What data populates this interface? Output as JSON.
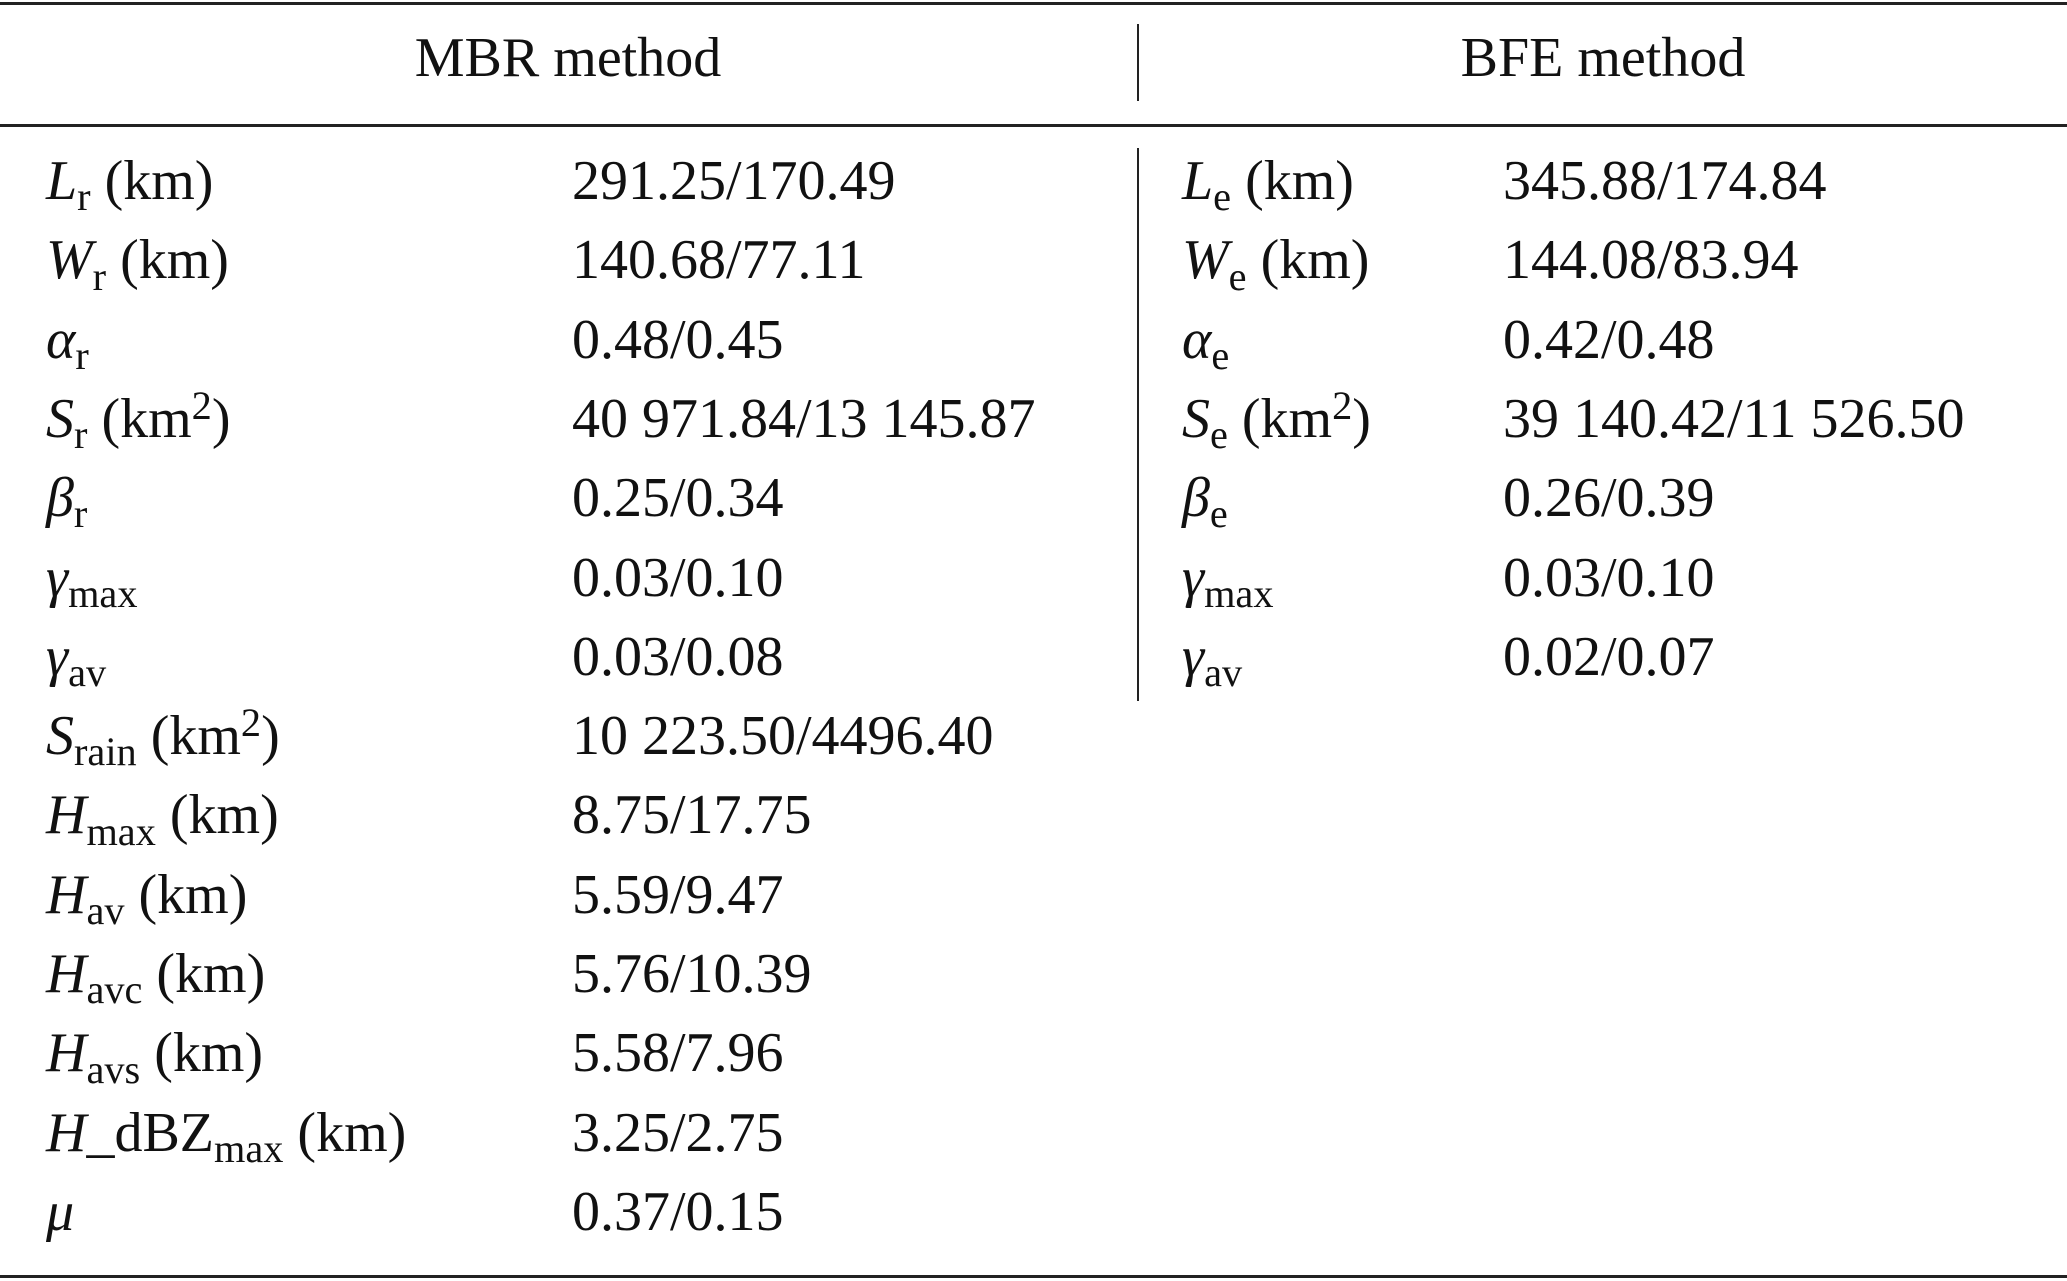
{
  "table": {
    "columns": [
      "MBR method",
      "BFE method"
    ],
    "left": [
      {
        "label": [
          {
            "text": "L",
            "style": "italic"
          },
          {
            "text": "r",
            "style": "sub"
          },
          {
            "text": " (km)"
          }
        ],
        "value": "291.25/170.49"
      },
      {
        "label": [
          {
            "text": "W",
            "style": "italic"
          },
          {
            "text": "r",
            "style": "sub"
          },
          {
            "text": " (km)"
          }
        ],
        "value": "140.68/77.11"
      },
      {
        "label": [
          {
            "text": "α",
            "style": "italic"
          },
          {
            "text": "r",
            "style": "sub"
          }
        ],
        "value": "0.48/0.45"
      },
      {
        "label": [
          {
            "text": "S",
            "style": "italic"
          },
          {
            "text": "r",
            "style": "sub"
          },
          {
            "text": " (km"
          },
          {
            "text": "2",
            "style": "sup"
          },
          {
            "text": ")"
          }
        ],
        "value": "40 971.84/13 145.87"
      },
      {
        "label": [
          {
            "text": "β",
            "style": "italic"
          },
          {
            "text": "r",
            "style": "sub"
          }
        ],
        "value": "0.25/0.34"
      },
      {
        "label": [
          {
            "text": "γ",
            "style": "italic"
          },
          {
            "text": "max",
            "style": "sub"
          }
        ],
        "value": "0.03/0.10"
      },
      {
        "label": [
          {
            "text": "γ",
            "style": "italic"
          },
          {
            "text": "av",
            "style": "sub"
          }
        ],
        "value": "0.03/0.08"
      },
      {
        "label": [
          {
            "text": "S",
            "style": "italic"
          },
          {
            "text": "rain",
            "style": "sub"
          },
          {
            "text": " (km"
          },
          {
            "text": "2",
            "style": "sup"
          },
          {
            "text": ")"
          }
        ],
        "value": "10 223.50/4496.40"
      },
      {
        "label": [
          {
            "text": "H",
            "style": "italic"
          },
          {
            "text": "max",
            "style": "sub"
          },
          {
            "text": " (km)"
          }
        ],
        "value": "8.75/17.75"
      },
      {
        "label": [
          {
            "text": "H",
            "style": "italic"
          },
          {
            "text": "av",
            "style": "sub"
          },
          {
            "text": " (km)"
          }
        ],
        "value": "5.59/9.47"
      },
      {
        "label": [
          {
            "text": "H",
            "style": "italic"
          },
          {
            "text": "avc",
            "style": "sub"
          },
          {
            "text": " (km)"
          }
        ],
        "value": "5.76/10.39"
      },
      {
        "label": [
          {
            "text": "H",
            "style": "italic"
          },
          {
            "text": "avs",
            "style": "sub"
          },
          {
            "text": " (km)"
          }
        ],
        "value": "5.58/7.96"
      },
      {
        "label": [
          {
            "text": "H",
            "style": "italic"
          },
          {
            "text": "_dBZ"
          },
          {
            "text": "max",
            "style": "sub"
          },
          {
            "text": " (km)"
          }
        ],
        "value": "3.25/2.75"
      },
      {
        "label": [
          {
            "text": "μ",
            "style": "italic"
          }
        ],
        "value": "0.37/0.15"
      }
    ],
    "right": [
      {
        "label": [
          {
            "text": "L",
            "style": "italic"
          },
          {
            "text": "e",
            "style": "sub"
          },
          {
            "text": " (km)"
          }
        ],
        "value": "345.88/174.84"
      },
      {
        "label": [
          {
            "text": "W",
            "style": "italic"
          },
          {
            "text": "e",
            "style": "sub"
          },
          {
            "text": " (km)"
          }
        ],
        "value": "144.08/83.94"
      },
      {
        "label": [
          {
            "text": "α",
            "style": "italic"
          },
          {
            "text": "e",
            "style": "sub"
          }
        ],
        "value": "0.42/0.48"
      },
      {
        "label": [
          {
            "text": "S",
            "style": "italic"
          },
          {
            "text": "e",
            "style": "sub"
          },
          {
            "text": " (km"
          },
          {
            "text": "2",
            "style": "sup"
          },
          {
            "text": ")"
          }
        ],
        "value": "39 140.42/11 526.50"
      },
      {
        "label": [
          {
            "text": "β",
            "style": "italic"
          },
          {
            "text": "e",
            "style": "sub"
          }
        ],
        "value": "0.26/0.39"
      },
      {
        "label": [
          {
            "text": "γ",
            "style": "italic"
          },
          {
            "text": "max",
            "style": "sub"
          }
        ],
        "value": "0.03/0.10"
      },
      {
        "label": [
          {
            "text": "γ",
            "style": "italic"
          },
          {
            "text": "av",
            "style": "sub"
          }
        ],
        "value": "0.02/0.07"
      }
    ]
  }
}
